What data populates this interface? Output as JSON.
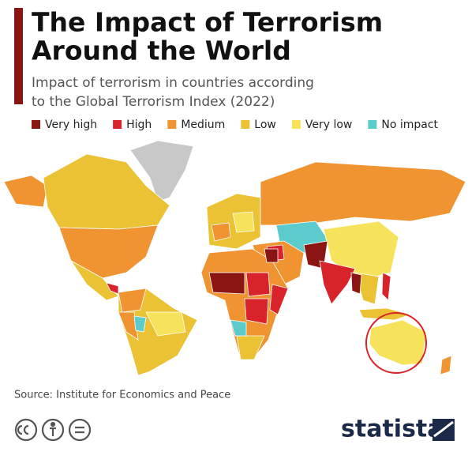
{
  "header": {
    "title_lines": [
      "The Impact of Terrorism",
      "Around the World"
    ],
    "subtitle_lines": [
      "Impact of terrorism in countries according",
      "to the Global Terrorism Index (2022)"
    ]
  },
  "legend": [
    {
      "label": "Very high",
      "color": "#8b1512"
    },
    {
      "label": "High",
      "color": "#d8232a"
    },
    {
      "label": "Medium",
      "color": "#ef9431"
    },
    {
      "label": "Low",
      "color": "#eac234"
    },
    {
      "label": "Very low",
      "color": "#f7e35b"
    },
    {
      "label": "No impact",
      "color": "#5bcbcc"
    }
  ],
  "footer": {
    "source": "Source: Institute for Economics and Peace",
    "brand": "statista"
  }
}
